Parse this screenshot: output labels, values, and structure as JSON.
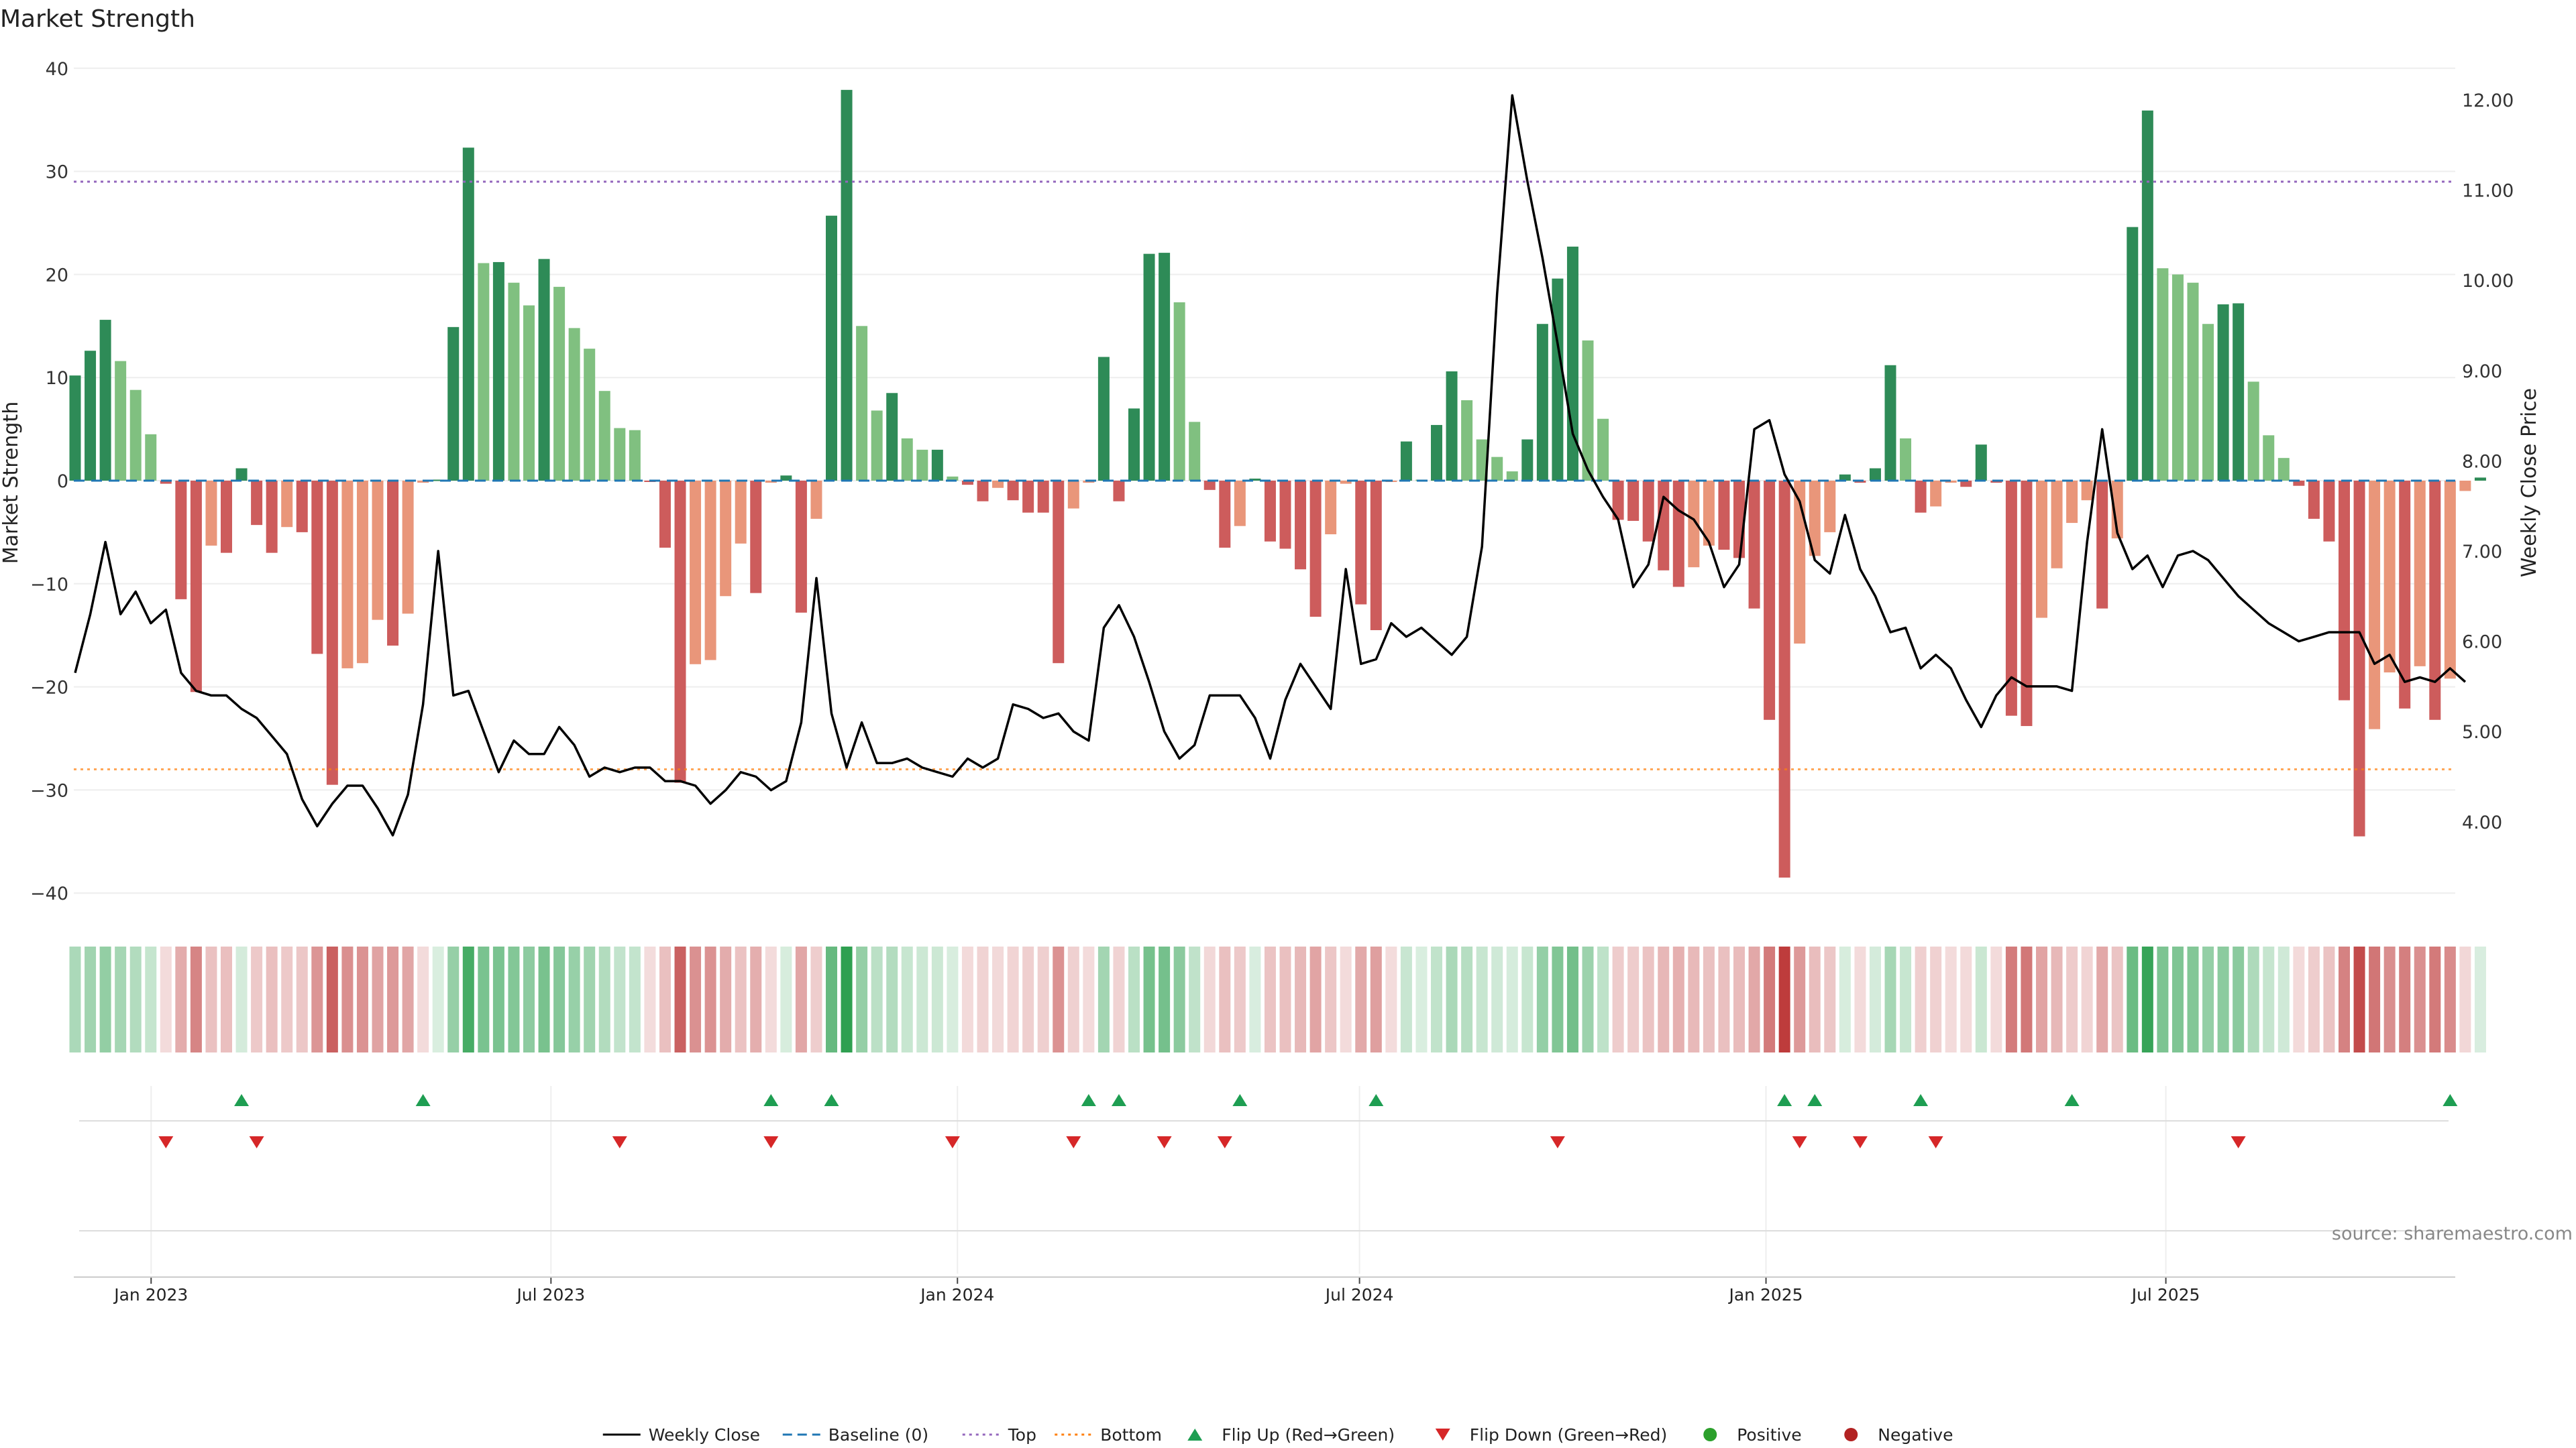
{
  "page": {
    "title": "Market Strength"
  },
  "chart_data": {
    "type": "bar",
    "title": "Market Strength",
    "ylabel_left": "Market Strength",
    "ylabel_right": "Weekly Close Price",
    "ylim_left": [
      -40,
      40
    ],
    "ylim_right": [
      3.25,
      12.35
    ],
    "yticks_left": [
      40,
      30,
      20,
      10,
      0,
      -10,
      -20,
      -30,
      -40
    ],
    "yticks_right": [
      12.0,
      11.0,
      10.0,
      9.0,
      8.0,
      7.0,
      6.0,
      5.0,
      4.0
    ],
    "top_line": 29,
    "bottom_line": -28,
    "x_start": "2022-11-27",
    "x_end": "2025-11-09",
    "x_ticks": [
      {
        "date": "2023-01-01",
        "label": "Jan 2023"
      },
      {
        "date": "2023-07-01",
        "label": "Jul 2023"
      },
      {
        "date": "2024-01-01",
        "label": "Jan 2024"
      },
      {
        "date": "2024-07-01",
        "label": "Jul 2024"
      },
      {
        "date": "2025-01-01",
        "label": "Jan 2025"
      },
      {
        "date": "2025-07-01",
        "label": "Jul 2025"
      }
    ],
    "strength": [
      10.2,
      12.6,
      15.6,
      11.6,
      8.8,
      4.5,
      -0.3,
      -11.5,
      -20.5,
      -6.3,
      -7.0,
      1.2,
      -4.3,
      -7.0,
      -4.5,
      -5.0,
      -16.8,
      -29.5,
      -18.2,
      -17.7,
      -13.5,
      -16.0,
      -12.9,
      -0.2,
      0.1,
      14.9,
      32.3,
      21.1,
      21.2,
      19.2,
      17.0,
      21.5,
      18.8,
      14.8,
      12.8,
      8.7,
      5.1,
      4.9,
      -0.1,
      -6.5,
      -29.3,
      -17.8,
      -17.4,
      -11.2,
      -6.1,
      -10.9,
      -0.2,
      0.5,
      -12.8,
      -3.7,
      25.7,
      37.9,
      15.0,
      6.8,
      8.5,
      4.1,
      3.0,
      3.0,
      0.4,
      -0.4,
      -2.0,
      -0.7,
      -1.9,
      -3.1,
      -3.1,
      -17.7,
      -2.7,
      -0.2,
      12.0,
      -2.0,
      7.0,
      22.0,
      22.1,
      17.3,
      5.7,
      -0.9,
      -6.5,
      -4.4,
      0.2,
      -5.9,
      -6.6,
      -8.6,
      -13.2,
      -5.2,
      -0.3,
      -12.0,
      -14.5,
      -0.1,
      3.8,
      0.1,
      5.4,
      10.6,
      7.8,
      4.0,
      2.3,
      0.9,
      4.0,
      15.2,
      19.6,
      22.7,
      13.6,
      6.0,
      -3.8,
      -3.9,
      -5.9,
      -8.7,
      -10.3,
      -8.4,
      -6.3,
      -6.7,
      -7.5,
      -12.4,
      -23.2,
      -38.5,
      -15.8,
      -7.3,
      -5.0,
      0.6,
      -0.2,
      1.2,
      11.2,
      4.1,
      -3.1,
      -2.5,
      -0.2,
      -0.6,
      3.5,
      -0.2,
      -22.8,
      -23.8,
      -13.3,
      -8.5,
      -4.1,
      -1.9,
      -12.4,
      -5.6,
      24.6,
      35.9,
      20.6,
      20.0,
      19.2,
      15.2,
      17.1,
      17.2,
      9.6,
      4.4,
      2.2,
      -0.5,
      -3.7,
      -5.9,
      -21.3,
      -34.5,
      -24.1,
      -18.6,
      -22.1,
      -18.0,
      -23.2,
      -19.2,
      -1.0,
      0.3
    ],
    "weekly_close": [
      5.65,
      6.3,
      7.1,
      6.3,
      6.55,
      6.2,
      6.35,
      5.65,
      5.45,
      5.4,
      5.4,
      5.25,
      5.15,
      4.95,
      4.75,
      4.25,
      3.95,
      4.2,
      4.4,
      4.4,
      4.15,
      3.85,
      4.3,
      5.3,
      7.0,
      5.4,
      5.45,
      5.0,
      4.55,
      4.9,
      4.75,
      4.75,
      5.05,
      4.85,
      4.5,
      4.6,
      4.55,
      4.6,
      4.6,
      4.45,
      4.45,
      4.4,
      4.2,
      4.35,
      4.55,
      4.5,
      4.35,
      4.45,
      5.1,
      6.7,
      5.2,
      4.6,
      5.1,
      4.65,
      4.65,
      4.7,
      4.6,
      4.55,
      4.5,
      4.7,
      4.6,
      4.7,
      5.3,
      5.25,
      5.15,
      5.2,
      5.0,
      4.9,
      6.15,
      6.4,
      6.05,
      5.55,
      5.0,
      4.7,
      4.85,
      5.4,
      5.4,
      5.4,
      5.15,
      4.7,
      5.35,
      5.75,
      5.5,
      5.25,
      6.8,
      5.75,
      5.8,
      6.2,
      6.05,
      6.15,
      6.0,
      5.85,
      6.05,
      7.05,
      9.85,
      12.05,
      11.1,
      10.25,
      9.3,
      8.3,
      7.9,
      7.6,
      7.35,
      6.6,
      6.85,
      7.6,
      7.45,
      7.35,
      7.1,
      6.6,
      6.85,
      8.35,
      8.45,
      7.85,
      7.55,
      6.9,
      6.75,
      7.4,
      6.8,
      6.5,
      6.1,
      6.15,
      5.7,
      5.85,
      5.7,
      5.35,
      5.05,
      5.4,
      5.6,
      5.5,
      5.5,
      5.5,
      5.45,
      7.1,
      8.35,
      7.2,
      6.8,
      6.95,
      6.6,
      6.95,
      7.0,
      6.9,
      6.7,
      6.5,
      6.35,
      6.2,
      6.1,
      6.0,
      6.05,
      6.1,
      6.1,
      6.1,
      5.75,
      5.85,
      5.55,
      5.6,
      5.55,
      5.7,
      5.55
    ],
    "flip_up_weeks": [
      11,
      23,
      46,
      50,
      67,
      69,
      77,
      86,
      113,
      115,
      122,
      132,
      157
    ],
    "flip_down_weeks": [
      6,
      12,
      36,
      46,
      58,
      66,
      72,
      76,
      98,
      114,
      118,
      123,
      143
    ],
    "colors": {
      "strong_pos": "#2e8b57",
      "weak_pos": "#80c080",
      "strong_neg": "#cd5c5c",
      "weak_neg": "#e9967a",
      "line": "#000000",
      "baseline": "#1f77b4",
      "top": "#9467bd",
      "bottom": "#ff7f0e",
      "flip_up": "#1e9e52",
      "flip_down": "#d62728",
      "positive": "#2ca02c",
      "negative": "#b22222"
    },
    "legend": {
      "placement": "bottom-center",
      "items": [
        {
          "label": "Weekly Close",
          "kind": "line",
          "color": "#000000"
        },
        {
          "label": "Baseline (0)",
          "kind": "dash",
          "color": "#1f77b4"
        },
        {
          "label": "Top",
          "kind": "dot",
          "color": "#9467bd"
        },
        {
          "label": "Bottom",
          "kind": "dot",
          "color": "#ff7f0e"
        },
        {
          "label": "Flip Up (Red→Green)",
          "kind": "tri-up",
          "color": "#1e9e52"
        },
        {
          "label": "Flip Down (Green→Red)",
          "kind": "tri-down",
          "color": "#d62728"
        },
        {
          "label": "Positive",
          "kind": "circle",
          "color": "#2ca02c"
        },
        {
          "label": "Negative",
          "kind": "circle",
          "color": "#b22222"
        }
      ]
    },
    "source_note": "source: sharemaestro.com"
  }
}
